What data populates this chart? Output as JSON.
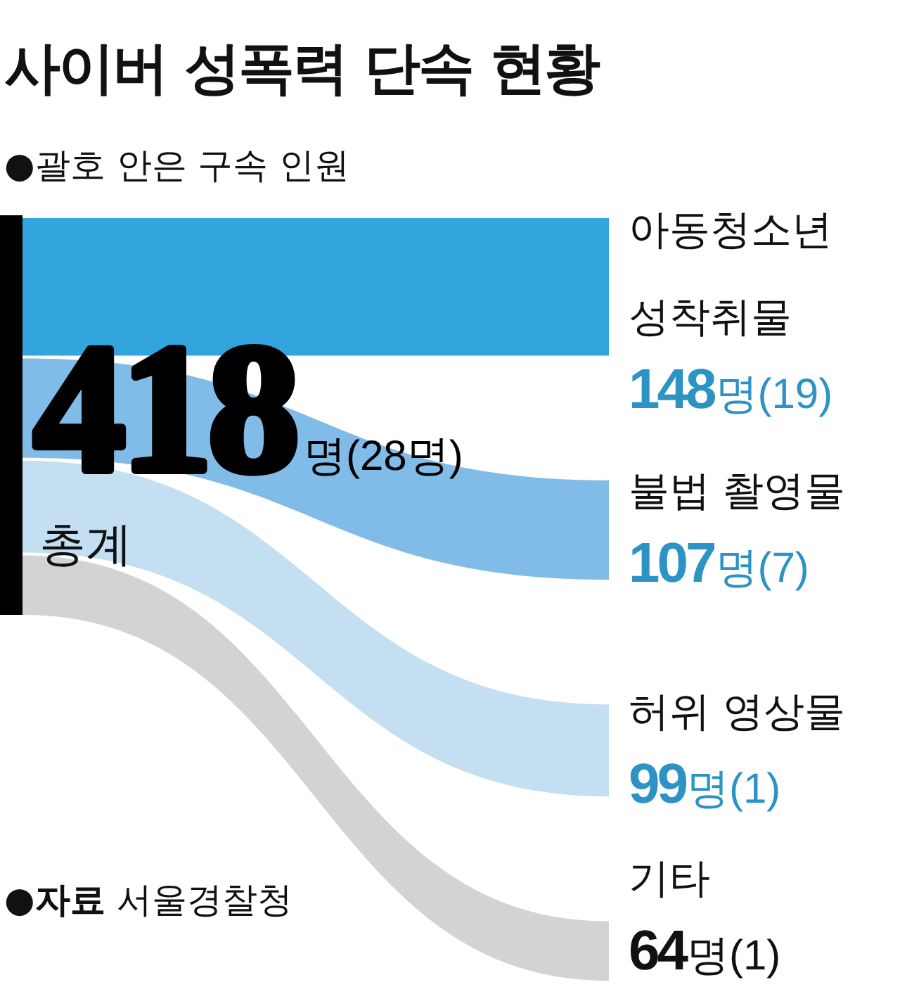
{
  "chart_data": {
    "type": "other",
    "title": "사이버 성폭력 단속 현황",
    "subtitle": "●괄호 안은 구속 인원",
    "categories": [
      "아동청소년 성착취물",
      "불법 촬영물",
      "허위 영상물",
      "기타"
    ],
    "values": [
      148,
      107,
      99,
      64
    ],
    "colors": [
      "#33a5de",
      "#80bce7",
      "#c4def2",
      "#d3d3d3"
    ],
    "value_labels": [
      "148명(19)",
      "107명(7)",
      "99명(1)",
      "64명(1)"
    ],
    "annotations": [
      "418명(28명)",
      "총계",
      "●자료 서울경찰청"
    ]
  }
}
